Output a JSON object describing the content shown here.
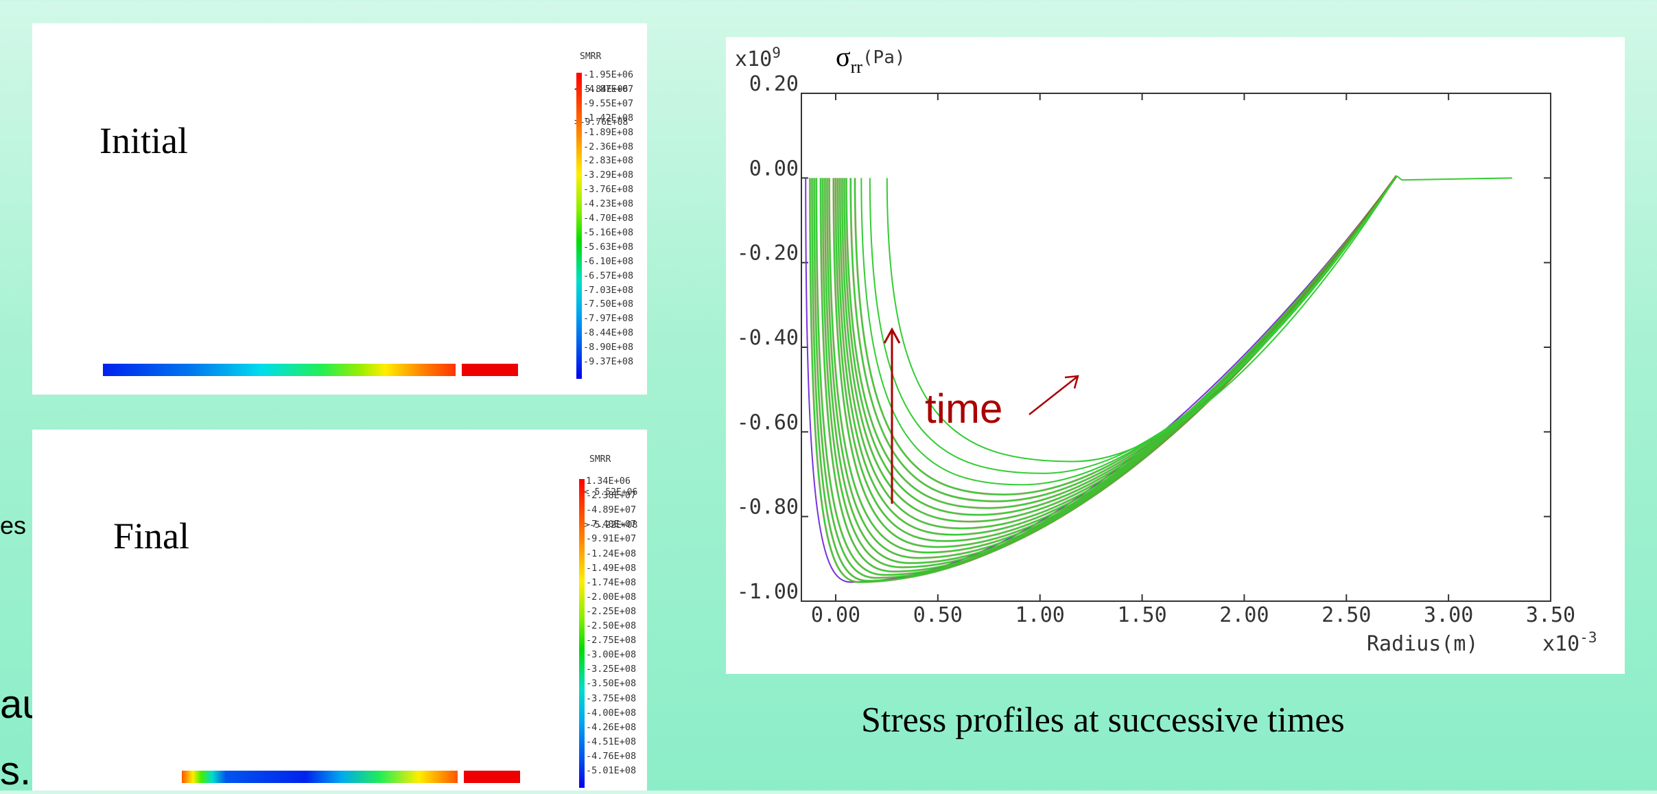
{
  "left_fragments": {
    "a": "es",
    "b": "auxiliary",
    "c": "s."
  },
  "panels": {
    "initial": {
      "title": "Initial",
      "legend_title": "SMRR",
      "legend_max": "< 5.84E+06",
      "legend_min": ">-9.76E+08",
      "legend_values": [
        "-1.95E+06",
        "-4.87E+07",
        "-9.55E+07",
        "-1.42E+08",
        "-1.89E+08",
        "-2.36E+08",
        "-2.83E+08",
        "-3.29E+08",
        "-3.76E+08",
        "-4.23E+08",
        "-4.70E+08",
        "-5.16E+08",
        "-5.63E+08",
        "-6.10E+08",
        "-6.57E+08",
        "-7.03E+08",
        "-7.50E+08",
        "-7.97E+08",
        "-8.44E+08",
        "-8.90E+08",
        "-9.37E+08"
      ]
    },
    "final": {
      "title": "Final",
      "legend_title": "SMRR",
      "legend_max": "< 5.52E+06",
      "legend_min": ">-5.22E+08",
      "legend_values": [
        " 1.34E+06",
        "-2.38E+07",
        "-4.89E+07",
        "-7.40E+07",
        "-9.91E+07",
        "-1.24E+08",
        "-1.49E+08",
        "-1.74E+08",
        "-2.00E+08",
        "-2.25E+08",
        "-2.50E+08",
        "-2.75E+08",
        "-3.00E+08",
        "-3.25E+08",
        "-3.50E+08",
        "-3.75E+08",
        "-4.00E+08",
        "-4.26E+08",
        "-4.51E+08",
        "-4.76E+08",
        "-5.01E+08"
      ]
    }
  },
  "colors": {
    "curve": "#33cc33",
    "curve_edge": "#996633",
    "initial_curve": "#7733dd",
    "annotation": "#aa0000"
  },
  "chart_data": {
    "type": "line",
    "y_unit_exp": "x10",
    "y_unit_exp_power": "9",
    "y_label_symbol": "σ",
    "y_label_sub": "rr",
    "y_label_unit": "(Pa)",
    "x_label": "Radius(m)",
    "x_unit_exp": "x10",
    "x_unit_exp_power": "-3",
    "xlim": [
      -0.15,
      3.35
    ],
    "ylim": [
      -1.0,
      0.2
    ],
    "x_ticks": [
      0.0,
      0.5,
      1.0,
      1.5,
      2.0,
      2.5,
      3.0,
      3.5
    ],
    "x_tick_labels": [
      "0.00",
      "0.50",
      "1.00",
      "1.50",
      "2.00",
      "2.50",
      "3.00",
      "3.50"
    ],
    "y_ticks": [
      0.2,
      0.0,
      -0.2,
      -0.4,
      -0.6,
      -0.8,
      -1.0
    ],
    "y_tick_labels": [
      "0.20",
      "0.00",
      "-0.20",
      "-0.40",
      "-0.60",
      "-0.80",
      "-1.00"
    ],
    "grid": false,
    "annotation": "time",
    "series_minima": [
      {
        "x": 0.08,
        "y": -0.955,
        "start_x": -0.13
      },
      {
        "x": 0.12,
        "y": -0.955,
        "start_x": -0.11
      },
      {
        "x": 0.16,
        "y": -0.952,
        "start_x": -0.1
      },
      {
        "x": 0.2,
        "y": -0.945,
        "start_x": -0.09
      },
      {
        "x": 0.24,
        "y": -0.938,
        "start_x": -0.08
      },
      {
        "x": 0.28,
        "y": -0.93,
        "start_x": -0.06
      },
      {
        "x": 0.32,
        "y": -0.92,
        "start_x": -0.05
      },
      {
        "x": 0.36,
        "y": -0.91,
        "start_x": -0.04
      },
      {
        "x": 0.4,
        "y": -0.898,
        "start_x": -0.03
      },
      {
        "x": 0.44,
        "y": -0.885,
        "start_x": -0.02
      },
      {
        "x": 0.48,
        "y": -0.872,
        "start_x": 0.0
      },
      {
        "x": 0.52,
        "y": -0.858,
        "start_x": 0.01
      },
      {
        "x": 0.56,
        "y": -0.843,
        "start_x": 0.02
      },
      {
        "x": 0.6,
        "y": -0.828,
        "start_x": 0.03
      },
      {
        "x": 0.64,
        "y": -0.812,
        "start_x": 0.04
      },
      {
        "x": 0.68,
        "y": -0.796,
        "start_x": 0.05
      },
      {
        "x": 0.72,
        "y": -0.78,
        "start_x": 0.06
      },
      {
        "x": 0.76,
        "y": -0.764,
        "start_x": 0.08
      },
      {
        "x": 0.8,
        "y": -0.748,
        "start_x": 0.1
      },
      {
        "x": 0.88,
        "y": -0.725,
        "start_x": 0.13
      },
      {
        "x": 0.98,
        "y": -0.698,
        "start_x": 0.17
      },
      {
        "x": 1.12,
        "y": -0.67,
        "start_x": 0.25
      }
    ],
    "converge": {
      "x": 2.63,
      "y": 0.005
    },
    "tail_end": {
      "x": 3.17,
      "y": 0.0
    }
  },
  "caption": "Stress  profiles at successive times"
}
